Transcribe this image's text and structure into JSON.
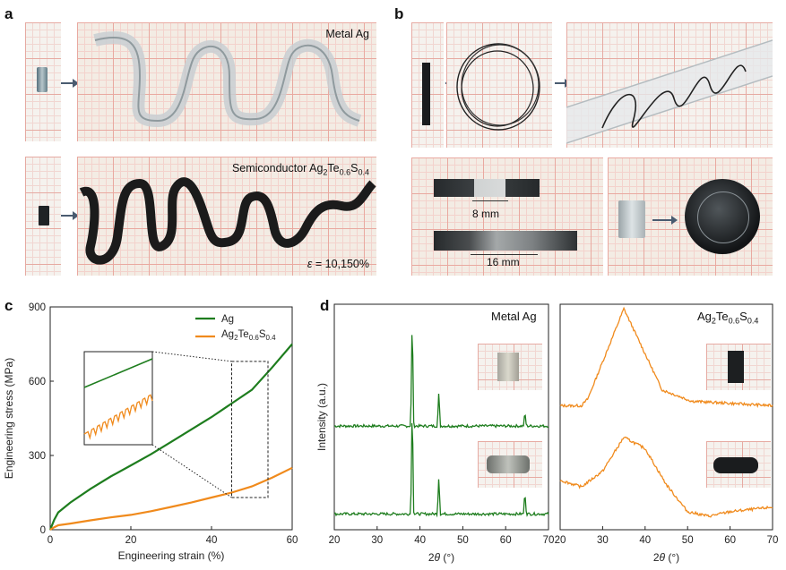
{
  "panels": {
    "a": {
      "label": "a",
      "top_caption": "Metal Ag",
      "bottom_caption_prefix": "Semiconductor Ag",
      "bottom_caption_sub1": "2",
      "bottom_caption_mid": "Te",
      "bottom_caption_sub2": "0.6",
      "bottom_caption_mid2": "S",
      "bottom_caption_sub3": "0.4",
      "strain_symbol": "ε",
      "strain_text": " = 10,150%"
    },
    "b": {
      "label": "b",
      "length1": "8 mm",
      "length2": "16 mm"
    },
    "c": {
      "label": "c"
    },
    "d": {
      "label": "d",
      "left_title": "Metal Ag",
      "right_title_prefix": "Ag",
      "right_title_sub1": "2",
      "right_title_mid": "Te",
      "right_title_sub2": "0.6",
      "right_title_mid2": "S",
      "right_title_sub3": "0.4"
    }
  },
  "colors": {
    "ag": "#1e7d1e",
    "ags": "#f08a1c",
    "frame": "#2b4a66"
  },
  "chart_data": [
    {
      "type": "line",
      "panel": "c",
      "xlabel": "Engineering strain (%)",
      "ylabel": "Engineering stress (MPa)",
      "xlim": [
        0,
        60
      ],
      "ylim": [
        0,
        900
      ],
      "xticks": [
        "0",
        "20",
        "40",
        "60"
      ],
      "yticks": [
        "0",
        "300",
        "600",
        "900"
      ],
      "legend_position": "top-right",
      "series": [
        {
          "name": "Ag",
          "x": [
            0,
            1,
            2,
            5,
            10,
            15,
            20,
            25,
            30,
            35,
            40,
            45,
            50,
            55,
            60
          ],
          "y": [
            0,
            40,
            70,
            110,
            165,
            215,
            260,
            305,
            355,
            405,
            455,
            510,
            565,
            655,
            750
          ]
        },
        {
          "name_prefix": "Ag",
          "name_sub1": "2",
          "name_mid": "Te",
          "name_sub2": "0.6",
          "name_mid2": "S",
          "name_sub3": "0.4",
          "x": [
            0,
            1,
            2,
            5,
            10,
            15,
            20,
            25,
            30,
            35,
            40,
            45,
            50,
            55,
            60
          ],
          "y": [
            0,
            10,
            18,
            25,
            38,
            50,
            60,
            75,
            92,
            110,
            130,
            150,
            175,
            210,
            250
          ]
        }
      ],
      "inset_window": {
        "x": [
          45,
          54
        ],
        "y": [
          130,
          680
        ]
      }
    },
    {
      "type": "line",
      "panel": "d-left",
      "title": "Metal Ag",
      "xlabel": "2θ (°)",
      "ylabel": "Intensity (a.u.)",
      "xlim": [
        20,
        70
      ],
      "xticks": [
        "20",
        "30",
        "40",
        "50",
        "60",
        "70"
      ],
      "series": [
        {
          "x": [
            20,
            38.2,
            44.4,
            64.5,
            70
          ],
          "y": [
            0.46,
            0.97,
            0.61,
            0.52,
            0.46
          ]
        },
        {
          "x": [
            20,
            38.2,
            44.4,
            64.5,
            70
          ],
          "y": [
            0.07,
            0.58,
            0.24,
            0.17,
            0.07
          ]
        }
      ]
    },
    {
      "type": "line",
      "panel": "d-right",
      "xlabel": "2θ (°)",
      "xlim": [
        20,
        70
      ],
      "xticks": [
        "20",
        "30",
        "40",
        "50",
        "60",
        "70"
      ],
      "series": [
        {
          "x": [
            20,
            25,
            26.5,
            35,
            44,
            51,
            70
          ],
          "y": [
            0.55,
            0.55,
            0.58,
            0.98,
            0.62,
            0.57,
            0.55
          ]
        },
        {
          "x": [
            20,
            25,
            30,
            35,
            40,
            45,
            50,
            55,
            60,
            65,
            70
          ],
          "y": [
            0.22,
            0.19,
            0.26,
            0.41,
            0.36,
            0.2,
            0.08,
            0.06,
            0.08,
            0.09,
            0.1
          ]
        }
      ]
    }
  ]
}
